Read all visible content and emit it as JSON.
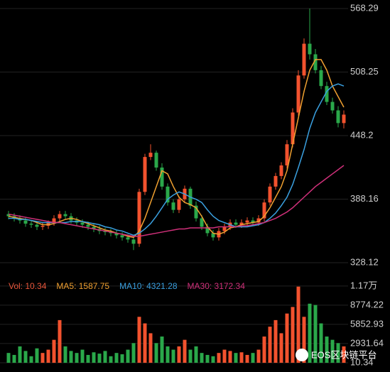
{
  "chart_data": {
    "type": "candlestick",
    "up_color": "#f2522e",
    "down_color": "#2aa84a",
    "open": [
      374,
      372,
      370,
      368,
      365,
      364,
      362,
      363,
      366,
      370,
      374,
      372,
      368,
      366,
      364,
      362,
      360,
      358,
      357,
      356,
      354,
      352,
      350,
      346,
      395,
      428,
      432,
      418,
      400,
      385,
      378,
      388,
      398,
      382,
      370,
      362,
      356,
      352,
      358,
      362,
      366,
      364,
      366,
      368,
      366,
      370,
      385,
      400,
      410,
      420,
      440,
      470,
      505,
      535,
      525,
      510,
      495,
      480,
      472,
      460
    ],
    "high": [
      377,
      375,
      373,
      371,
      368,
      367,
      366,
      368,
      373,
      377,
      377,
      375,
      371,
      369,
      367,
      365,
      363,
      361,
      360,
      359,
      357,
      355,
      353,
      398,
      431,
      440,
      434,
      422,
      403,
      388,
      391,
      401,
      400,
      386,
      373,
      365,
      359,
      361,
      365,
      369,
      369,
      369,
      371,
      371,
      373,
      388,
      403,
      413,
      423,
      444,
      474,
      510,
      540,
      568.29,
      530,
      514,
      499,
      484,
      476,
      472
    ],
    "low": [
      369,
      367,
      365,
      362,
      361,
      359,
      359,
      360,
      363,
      367,
      369,
      365,
      363,
      361,
      359,
      357,
      355,
      354,
      353,
      351,
      349,
      347,
      340,
      343,
      392,
      425,
      415,
      397,
      382,
      375,
      375,
      385,
      379,
      367,
      359,
      353,
      349,
      349,
      355,
      359,
      361,
      361,
      363,
      363,
      363,
      367,
      382,
      397,
      407,
      417,
      437,
      467,
      502,
      520,
      507,
      492,
      477,
      469,
      456,
      455
    ],
    "close": [
      372,
      370,
      368,
      365,
      364,
      362,
      363,
      366,
      370,
      374,
      372,
      368,
      366,
      364,
      362,
      360,
      358,
      357,
      356,
      354,
      352,
      350,
      346,
      395,
      428,
      432,
      418,
      400,
      385,
      378,
      388,
      398,
      382,
      370,
      362,
      356,
      352,
      358,
      362,
      366,
      364,
      366,
      368,
      366,
      370,
      385,
      400,
      410,
      420,
      440,
      470,
      505,
      535,
      525,
      510,
      495,
      480,
      472,
      460,
      468
    ],
    "ma_lines": [
      {
        "color": "#f0a030",
        "values": [
          372,
          371,
          370,
          369,
          368,
          366,
          364,
          364,
          365,
          367,
          369,
          370,
          369,
          367,
          365,
          363,
          361,
          359,
          358,
          356,
          355,
          353,
          352,
          358,
          370,
          385,
          400,
          415,
          412,
          400,
          390,
          385,
          383,
          380,
          372,
          362,
          356,
          355,
          357,
          361,
          362,
          364,
          365,
          366,
          367,
          372,
          380,
          390,
          400,
          415,
          440,
          465,
          490,
          510,
          520,
          520,
          510,
          495,
          485,
          475
        ]
      },
      {
        "color": "#3aa0e0",
        "values": [
          370,
          370,
          369,
          369,
          368,
          367,
          366,
          366,
          366,
          366,
          366,
          367,
          367,
          367,
          366,
          365,
          364,
          362,
          361,
          359,
          358,
          356,
          354,
          356,
          360,
          365,
          372,
          380,
          388,
          392,
          395,
          393,
          390,
          388,
          385,
          378,
          372,
          368,
          366,
          364,
          362,
          362,
          362,
          363,
          364,
          366,
          370,
          375,
          382,
          390,
          402,
          418,
          435,
          455,
          470,
          480,
          490,
          495,
          497,
          495
        ]
      },
      {
        "color": "#d0307a",
        "values": [
          374,
          373,
          372,
          371,
          370,
          369,
          368,
          367,
          366,
          366,
          365,
          364,
          363,
          362,
          361,
          360,
          359,
          358,
          357,
          356,
          355,
          354,
          353,
          353,
          354,
          355,
          356,
          357,
          358,
          359,
          360,
          360,
          361,
          361,
          361,
          361,
          361,
          362,
          362,
          362,
          362,
          363,
          363,
          364,
          365,
          366,
          368,
          370,
          373,
          376,
          380,
          385,
          390,
          395,
          400,
          404,
          408,
          412,
          416,
          420
        ]
      }
    ],
    "ylim": [
      314.7,
      576.3
    ],
    "yticks": [
      568.29,
      508.25,
      448.2,
      388.16,
      328.12
    ],
    "volume": [
      1500,
      1200,
      2500,
      1800,
      1000,
      2200,
      1500,
      2000,
      3500,
      6500,
      2500,
      1800,
      1500,
      2000,
      1200,
      1600,
      1400,
      1800,
      1000,
      1500,
      1300,
      2000,
      3000,
      7000,
      6000,
      4500,
      3000,
      4000,
      2500,
      2000,
      2500,
      3500,
      2000,
      2500,
      1500,
      1200,
      1000,
      1500,
      2000,
      1800,
      1500,
      1600,
      1200,
      1500,
      2000,
      4000,
      5500,
      6500,
      4500,
      7500,
      8500,
      11600,
      7000,
      9000,
      8800,
      6000,
      4000,
      3500,
      3000,
      2500
    ],
    "vol_ylim": [
      -1400,
      12000
    ],
    "vol_ticks": [
      {
        "value": 11695.51,
        "label": "1.17万"
      },
      8774.22,
      5852.93,
      2931.64,
      10.34
    ],
    "legend": [
      {
        "text": "Vol: 10.34",
        "color": "#e8553a"
      },
      {
        "text": "MA5: 1587.75",
        "color": "#f0a030"
      },
      {
        "text": "MA10: 4321.28",
        "color": "#3aa0e0"
      },
      {
        "text": "MA30: 3172.34",
        "color": "#d0307a"
      }
    ],
    "watermark": "EOS区块链平台"
  }
}
